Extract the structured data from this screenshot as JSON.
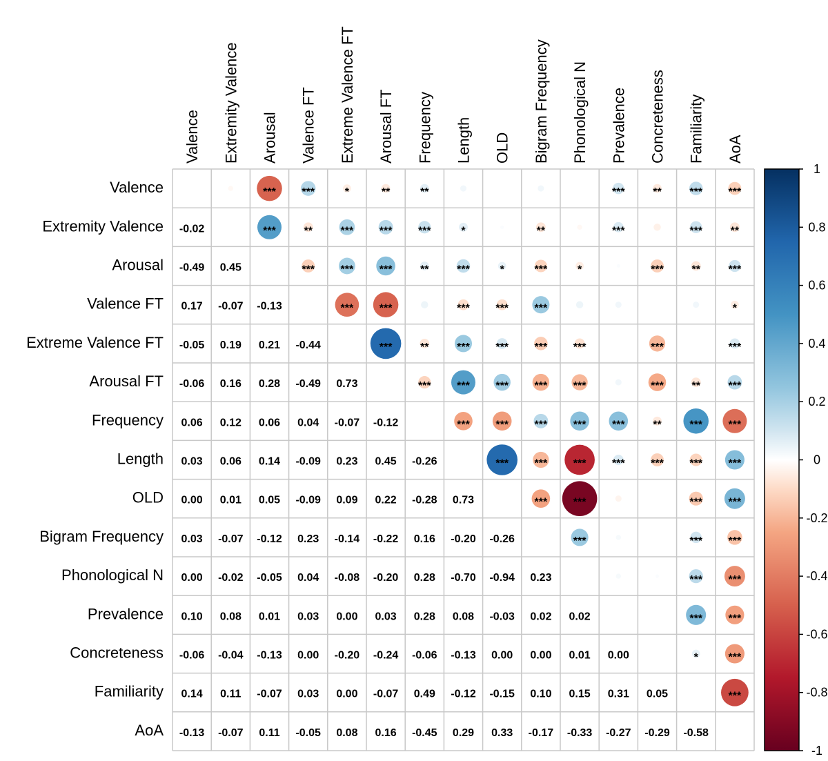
{
  "chart_data": {
    "type": "correlation-matrix",
    "variables": [
      "Valence",
      "Extremity Valence",
      "Arousal",
      "Valence FT",
      "Extreme Valence FT",
      "Arousal FT",
      "Frequency",
      "Length",
      "OLD",
      "Bigram Frequency",
      "Phonological N",
      "Prevalence",
      "Concreteness",
      "Familiarity",
      "AoA"
    ],
    "column_labels": [
      "Valence",
      "Extremity Valence",
      "Arousal",
      "Valence FT",
      "Extreme Valence FT",
      "Arousal FT",
      "Frequency",
      "Length",
      "OLD",
      "Bigram Frequency",
      "Phonological N",
      "Prevalence",
      "Concreteness",
      "Familiarity",
      "AoA"
    ],
    "coefficient_labels": [
      [],
      [
        "-0.02"
      ],
      [
        "-0.49",
        "0.45"
      ],
      [
        "0.17",
        "-0.07",
        "-0.13"
      ],
      [
        "-0.05",
        "0.19",
        "0.21",
        "-0.44"
      ],
      [
        "-0.06",
        "0.16",
        "0.28",
        "-0.49",
        "0.73"
      ],
      [
        "0.06",
        "0.12",
        "0.06",
        "0.04",
        "-0.07",
        "-0.12"
      ],
      [
        "0.03",
        "0.06",
        "0.14",
        "-0.09",
        "0.23",
        "0.45",
        "-0.26"
      ],
      [
        "0.00",
        "0.01",
        "0.05",
        "-0.09",
        "0.09",
        "0.22",
        "-0.28",
        "0.73"
      ],
      [
        "0.03",
        "-0.07",
        "-0.12",
        "0.23",
        "-0.14",
        "-0.22",
        "0.16",
        "-0.20",
        "-0.26"
      ],
      [
        "0.00",
        "-0.02",
        "-0.05",
        "0.04",
        "-0.08",
        "-0.20",
        "0.28",
        "-0.70",
        "-0.94",
        "0.23"
      ],
      [
        "0.10",
        "0.08",
        "0.01",
        "0.03",
        "0.00",
        "0.03",
        "0.28",
        "0.08",
        "-0.03",
        "0.02",
        "0.02"
      ],
      [
        "-0.06",
        "-0.04",
        "-0.13",
        "0.00",
        "-0.20",
        "-0.24",
        "-0.06",
        "-0.13",
        "0.00",
        "0.00",
        "0.01",
        "0.00"
      ],
      [
        "0.14",
        "0.11",
        "-0.07",
        "0.03",
        "0.00",
        "-0.07",
        "0.49",
        "-0.12",
        "-0.15",
        "0.10",
        "0.15",
        "0.31",
        "0.05"
      ],
      [
        "-0.13",
        "-0.07",
        "0.11",
        "-0.05",
        "0.08",
        "0.16",
        "-0.45",
        "0.29",
        "0.33",
        "-0.17",
        "-0.33",
        "-0.27",
        "-0.29",
        "-0.58"
      ]
    ],
    "significance": [
      [
        "",
        "",
        "***",
        "***",
        "*",
        "**",
        "**",
        "",
        "",
        "",
        "",
        "***",
        "**",
        "***",
        "***"
      ],
      [
        "",
        "",
        "***",
        "**",
        "***",
        "***",
        "***",
        "*",
        "",
        "**",
        "",
        "***",
        "",
        "***",
        "**"
      ],
      [
        "",
        "",
        "",
        "***",
        "***",
        "***",
        "**",
        "***",
        "*",
        "***",
        "*",
        "",
        "***",
        "**",
        "***"
      ],
      [
        "",
        "",
        "",
        "",
        "***",
        "***",
        "",
        "***",
        "***",
        "***",
        "",
        "",
        "",
        "",
        "*"
      ],
      [
        "",
        "",
        "",
        "",
        "",
        "***",
        "**",
        "***",
        "***",
        "***",
        "***",
        "",
        "***",
        "",
        "***"
      ],
      [
        "",
        "",
        "",
        "",
        "",
        "",
        "***",
        "***",
        "***",
        "***",
        "***",
        "",
        "***",
        "**",
        "***"
      ],
      [
        "",
        "",
        "",
        "",
        "",
        "",
        "",
        "***",
        "***",
        "***",
        "***",
        "***",
        "**",
        "***",
        "***"
      ],
      [
        "",
        "",
        "",
        "",
        "",
        "",
        "",
        "",
        "***",
        "***",
        "***",
        "***",
        "***",
        "***",
        "***"
      ],
      [
        "",
        "",
        "",
        "",
        "",
        "",
        "",
        "",
        "",
        "***",
        "***",
        "",
        "",
        "***",
        "***"
      ],
      [
        "",
        "",
        "",
        "",
        "",
        "",
        "",
        "",
        "",
        "",
        "***",
        "",
        "",
        "***",
        "***"
      ],
      [
        "",
        "",
        "",
        "",
        "",
        "",
        "",
        "",
        "",
        "",
        "",
        "",
        "",
        "***",
        "***"
      ],
      [
        "",
        "",
        "",
        "",
        "",
        "",
        "",
        "",
        "",
        "",
        "",
        "",
        "",
        "***",
        "***"
      ],
      [
        "",
        "",
        "",
        "",
        "",
        "",
        "",
        "",
        "",
        "",
        "",
        "",
        "",
        "*",
        "***"
      ],
      [
        "",
        "",
        "",
        "",
        "",
        "",
        "",
        "",
        "",
        "",
        "",
        "",
        "",
        "",
        "***"
      ],
      [
        "",
        "",
        "",
        "",
        "",
        "",
        "",
        "",
        "",
        "",
        "",
        "",
        "",
        "",
        ""
      ]
    ],
    "colorbar": {
      "range": [
        -1,
        1
      ],
      "ticks": [
        "1",
        "0.8",
        "0.6",
        "0.4",
        "0.2",
        "0",
        "-0.2",
        "-0.4",
        "-0.6",
        "-0.8",
        "-1"
      ],
      "tick_values": [
        1,
        0.8,
        0.6,
        0.4,
        0.2,
        0,
        -0.2,
        -0.4,
        -0.6,
        -0.8,
        -1
      ],
      "stops": [
        {
          "v": -1,
          "color": "#67001f"
        },
        {
          "v": -0.75,
          "color": "#b2182b"
        },
        {
          "v": -0.5,
          "color": "#d6604d"
        },
        {
          "v": -0.25,
          "color": "#f4a582"
        },
        {
          "v": -0.1,
          "color": "#fddbc7"
        },
        {
          "v": 0,
          "color": "#ffffff"
        },
        {
          "v": 0.1,
          "color": "#d1e5f0"
        },
        {
          "v": 0.25,
          "color": "#92c5de"
        },
        {
          "v": 0.5,
          "color": "#4393c3"
        },
        {
          "v": 0.75,
          "color": "#2166ac"
        },
        {
          "v": 1,
          "color": "#053061"
        }
      ]
    },
    "lower_triangle": "numbers",
    "upper_triangle": "circles with significance stars"
  }
}
